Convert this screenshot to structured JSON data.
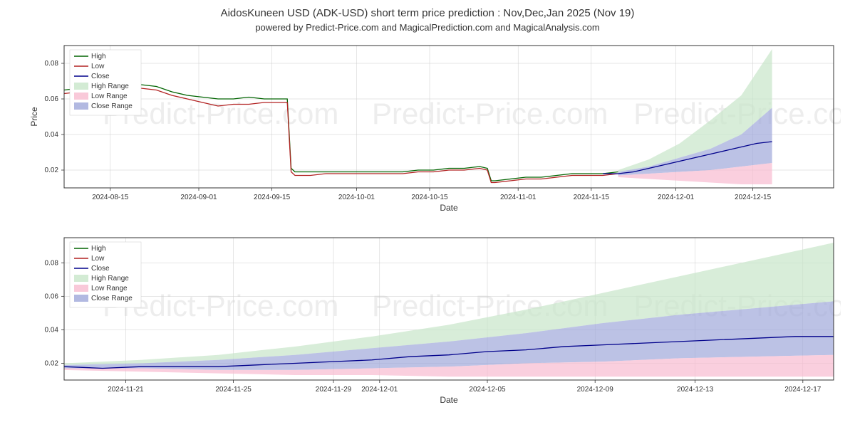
{
  "title": "AidosKuneen USD (ADK-USD) short term price prediction : Nov,Dec,Jan 2025 (Nov 19)",
  "subtitle": "powered by Predict-Price.com and MagicalPrediction.com and MagicalAnalysis.com",
  "watermarks": [
    "Predict-Price.com",
    "Predict-Price.com",
    "Predict-Price.com"
  ],
  "legend": {
    "items": [
      {
        "label": "High",
        "color": "#006400",
        "type": "line"
      },
      {
        "label": "Low",
        "color": "#b22222",
        "type": "line"
      },
      {
        "label": "Close",
        "color": "#00008b",
        "type": "line"
      },
      {
        "label": "High Range",
        "color": "#c8e6c9",
        "type": "fill"
      },
      {
        "label": "Low Range",
        "color": "#f8bbd0",
        "type": "fill"
      },
      {
        "label": "Close Range",
        "color": "#9fa8da",
        "type": "fill"
      }
    ]
  },
  "chart1": {
    "ylabel": "Price",
    "xlabel": "Date",
    "ylim": [
      0.01,
      0.09
    ],
    "yticks": [
      0.02,
      0.04,
      0.06,
      0.08
    ],
    "ytick_labels": [
      "0.02",
      "0.04",
      "0.06",
      "0.08"
    ],
    "xtick_labels": [
      "2024-08-15",
      "2024-09-01",
      "2024-09-15",
      "2024-10-01",
      "2024-10-15",
      "2024-11-01",
      "2024-11-15",
      "2024-12-01",
      "2024-12-15"
    ],
    "xtick_positions": [
      0.06,
      0.175,
      0.27,
      0.38,
      0.475,
      0.59,
      0.685,
      0.795,
      0.895
    ],
    "series": {
      "high": {
        "color": "#006400",
        "points": [
          [
            0,
            0.065
          ],
          [
            0.02,
            0.066
          ],
          [
            0.04,
            0.067
          ],
          [
            0.06,
            0.068
          ],
          [
            0.08,
            0.07
          ],
          [
            0.1,
            0.068
          ],
          [
            0.12,
            0.067
          ],
          [
            0.14,
            0.064
          ],
          [
            0.16,
            0.062
          ],
          [
            0.18,
            0.061
          ],
          [
            0.2,
            0.06
          ],
          [
            0.22,
            0.06
          ],
          [
            0.24,
            0.061
          ],
          [
            0.26,
            0.06
          ],
          [
            0.28,
            0.06
          ],
          [
            0.29,
            0.06
          ],
          [
            0.295,
            0.021
          ],
          [
            0.3,
            0.019
          ],
          [
            0.32,
            0.019
          ],
          [
            0.34,
            0.019
          ],
          [
            0.36,
            0.019
          ],
          [
            0.38,
            0.019
          ],
          [
            0.4,
            0.019
          ],
          [
            0.42,
            0.019
          ],
          [
            0.44,
            0.019
          ],
          [
            0.46,
            0.02
          ],
          [
            0.48,
            0.02
          ],
          [
            0.5,
            0.021
          ],
          [
            0.52,
            0.021
          ],
          [
            0.54,
            0.022
          ],
          [
            0.55,
            0.021
          ],
          [
            0.555,
            0.014
          ],
          [
            0.56,
            0.014
          ],
          [
            0.58,
            0.015
          ],
          [
            0.6,
            0.016
          ],
          [
            0.62,
            0.016
          ],
          [
            0.64,
            0.017
          ],
          [
            0.66,
            0.018
          ],
          [
            0.68,
            0.018
          ],
          [
            0.7,
            0.018
          ],
          [
            0.72,
            0.019
          ]
        ]
      },
      "low": {
        "color": "#b22222",
        "points": [
          [
            0,
            0.063
          ],
          [
            0.02,
            0.064
          ],
          [
            0.04,
            0.065
          ],
          [
            0.06,
            0.066
          ],
          [
            0.08,
            0.068
          ],
          [
            0.1,
            0.066
          ],
          [
            0.12,
            0.065
          ],
          [
            0.14,
            0.062
          ],
          [
            0.16,
            0.06
          ],
          [
            0.18,
            0.058
          ],
          [
            0.2,
            0.056
          ],
          [
            0.22,
            0.057
          ],
          [
            0.24,
            0.057
          ],
          [
            0.26,
            0.058
          ],
          [
            0.28,
            0.058
          ],
          [
            0.29,
            0.058
          ],
          [
            0.295,
            0.019
          ],
          [
            0.3,
            0.017
          ],
          [
            0.32,
            0.017
          ],
          [
            0.34,
            0.018
          ],
          [
            0.36,
            0.018
          ],
          [
            0.38,
            0.018
          ],
          [
            0.4,
            0.018
          ],
          [
            0.42,
            0.018
          ],
          [
            0.44,
            0.018
          ],
          [
            0.46,
            0.019
          ],
          [
            0.48,
            0.019
          ],
          [
            0.5,
            0.02
          ],
          [
            0.52,
            0.02
          ],
          [
            0.54,
            0.021
          ],
          [
            0.55,
            0.02
          ],
          [
            0.555,
            0.013
          ],
          [
            0.56,
            0.013
          ],
          [
            0.58,
            0.014
          ],
          [
            0.6,
            0.015
          ],
          [
            0.62,
            0.015
          ],
          [
            0.64,
            0.016
          ],
          [
            0.66,
            0.017
          ],
          [
            0.68,
            0.017
          ],
          [
            0.7,
            0.017
          ],
          [
            0.72,
            0.018
          ]
        ]
      },
      "close": {
        "color": "#00008b",
        "points": [
          [
            0.7,
            0.018
          ],
          [
            0.72,
            0.018
          ],
          [
            0.74,
            0.019
          ],
          [
            0.76,
            0.021
          ],
          [
            0.78,
            0.023
          ],
          [
            0.8,
            0.025
          ],
          [
            0.82,
            0.027
          ],
          [
            0.84,
            0.029
          ],
          [
            0.86,
            0.031
          ],
          [
            0.88,
            0.033
          ],
          [
            0.9,
            0.035
          ],
          [
            0.92,
            0.036
          ]
        ]
      },
      "high_range": {
        "color": "#c8e6c9",
        "top": [
          [
            0.72,
            0.02
          ],
          [
            0.76,
            0.026
          ],
          [
            0.8,
            0.035
          ],
          [
            0.84,
            0.048
          ],
          [
            0.88,
            0.062
          ],
          [
            0.92,
            0.088
          ]
        ],
        "bottom": [
          [
            0.72,
            0.019
          ],
          [
            0.76,
            0.022
          ],
          [
            0.8,
            0.027
          ],
          [
            0.84,
            0.032
          ],
          [
            0.88,
            0.04
          ],
          [
            0.92,
            0.055
          ]
        ]
      },
      "close_range": {
        "color": "#9fa8da",
        "top": [
          [
            0.72,
            0.019
          ],
          [
            0.76,
            0.022
          ],
          [
            0.8,
            0.027
          ],
          [
            0.84,
            0.032
          ],
          [
            0.88,
            0.04
          ],
          [
            0.92,
            0.055
          ]
        ],
        "bottom": [
          [
            0.72,
            0.017
          ],
          [
            0.76,
            0.018
          ],
          [
            0.8,
            0.019
          ],
          [
            0.84,
            0.02
          ],
          [
            0.88,
            0.022
          ],
          [
            0.92,
            0.024
          ]
        ]
      },
      "low_range": {
        "color": "#f8bbd0",
        "top": [
          [
            0.72,
            0.017
          ],
          [
            0.76,
            0.018
          ],
          [
            0.8,
            0.019
          ],
          [
            0.84,
            0.02
          ],
          [
            0.88,
            0.022
          ],
          [
            0.92,
            0.024
          ]
        ],
        "bottom": [
          [
            0.72,
            0.016
          ],
          [
            0.76,
            0.015
          ],
          [
            0.8,
            0.014
          ],
          [
            0.84,
            0.013
          ],
          [
            0.88,
            0.012
          ],
          [
            0.92,
            0.012
          ]
        ]
      }
    }
  },
  "chart2": {
    "ylabel": "",
    "xlabel": "Date",
    "ylim": [
      0.01,
      0.095
    ],
    "yticks": [
      0.02,
      0.04,
      0.06,
      0.08
    ],
    "ytick_labels": [
      "0.02",
      "0.04",
      "0.06",
      "0.08"
    ],
    "xtick_labels": [
      "2024-11-21",
      "2024-11-25",
      "2024-11-29",
      "2024-12-01",
      "2024-12-05",
      "2024-12-09",
      "2024-12-13",
      "2024-12-17"
    ],
    "xtick_positions": [
      0.08,
      0.22,
      0.35,
      0.41,
      0.55,
      0.69,
      0.82,
      0.96
    ],
    "series": {
      "close": {
        "color": "#00008b",
        "points": [
          [
            0,
            0.018
          ],
          [
            0.05,
            0.017
          ],
          [
            0.1,
            0.018
          ],
          [
            0.15,
            0.018
          ],
          [
            0.2,
            0.018
          ],
          [
            0.25,
            0.019
          ],
          [
            0.3,
            0.02
          ],
          [
            0.35,
            0.021
          ],
          [
            0.4,
            0.022
          ],
          [
            0.45,
            0.024
          ],
          [
            0.5,
            0.025
          ],
          [
            0.55,
            0.027
          ],
          [
            0.6,
            0.028
          ],
          [
            0.65,
            0.03
          ],
          [
            0.7,
            0.031
          ],
          [
            0.75,
            0.032
          ],
          [
            0.8,
            0.033
          ],
          [
            0.85,
            0.034
          ],
          [
            0.9,
            0.035
          ],
          [
            0.95,
            0.036
          ],
          [
            1.0,
            0.036
          ]
        ]
      },
      "high_range": {
        "color": "#c8e6c9",
        "top": [
          [
            0,
            0.02
          ],
          [
            0.1,
            0.022
          ],
          [
            0.2,
            0.025
          ],
          [
            0.3,
            0.03
          ],
          [
            0.4,
            0.036
          ],
          [
            0.5,
            0.043
          ],
          [
            0.6,
            0.052
          ],
          [
            0.7,
            0.062
          ],
          [
            0.8,
            0.072
          ],
          [
            0.9,
            0.082
          ],
          [
            1.0,
            0.092
          ]
        ],
        "bottom": [
          [
            0,
            0.019
          ],
          [
            0.1,
            0.02
          ],
          [
            0.2,
            0.022
          ],
          [
            0.3,
            0.025
          ],
          [
            0.4,
            0.029
          ],
          [
            0.5,
            0.033
          ],
          [
            0.6,
            0.038
          ],
          [
            0.7,
            0.044
          ],
          [
            0.8,
            0.049
          ],
          [
            0.9,
            0.053
          ],
          [
            1.0,
            0.057
          ]
        ]
      },
      "close_range": {
        "color": "#9fa8da",
        "top": [
          [
            0,
            0.019
          ],
          [
            0.1,
            0.02
          ],
          [
            0.2,
            0.022
          ],
          [
            0.3,
            0.025
          ],
          [
            0.4,
            0.029
          ],
          [
            0.5,
            0.033
          ],
          [
            0.6,
            0.038
          ],
          [
            0.7,
            0.044
          ],
          [
            0.8,
            0.049
          ],
          [
            0.9,
            0.053
          ],
          [
            1.0,
            0.057
          ]
        ],
        "bottom": [
          [
            0,
            0.017
          ],
          [
            0.1,
            0.017
          ],
          [
            0.2,
            0.016
          ],
          [
            0.3,
            0.016
          ],
          [
            0.4,
            0.017
          ],
          [
            0.5,
            0.018
          ],
          [
            0.6,
            0.02
          ],
          [
            0.7,
            0.021
          ],
          [
            0.8,
            0.023
          ],
          [
            0.9,
            0.024
          ],
          [
            1.0,
            0.025
          ]
        ]
      },
      "low_range": {
        "color": "#f8bbd0",
        "top": [
          [
            0,
            0.017
          ],
          [
            0.1,
            0.017
          ],
          [
            0.2,
            0.016
          ],
          [
            0.3,
            0.016
          ],
          [
            0.4,
            0.017
          ],
          [
            0.5,
            0.018
          ],
          [
            0.6,
            0.02
          ],
          [
            0.7,
            0.021
          ],
          [
            0.8,
            0.023
          ],
          [
            0.9,
            0.024
          ],
          [
            1.0,
            0.025
          ]
        ],
        "bottom": [
          [
            0,
            0.016
          ],
          [
            0.1,
            0.015
          ],
          [
            0.2,
            0.014
          ],
          [
            0.3,
            0.013
          ],
          [
            0.4,
            0.013
          ],
          [
            0.5,
            0.012
          ],
          [
            0.6,
            0.012
          ],
          [
            0.7,
            0.012
          ],
          [
            0.8,
            0.012
          ],
          [
            0.9,
            0.012
          ],
          [
            1.0,
            0.012
          ]
        ]
      }
    }
  },
  "colors": {
    "background": "#ffffff",
    "grid": "#cccccc",
    "text": "#333333"
  }
}
